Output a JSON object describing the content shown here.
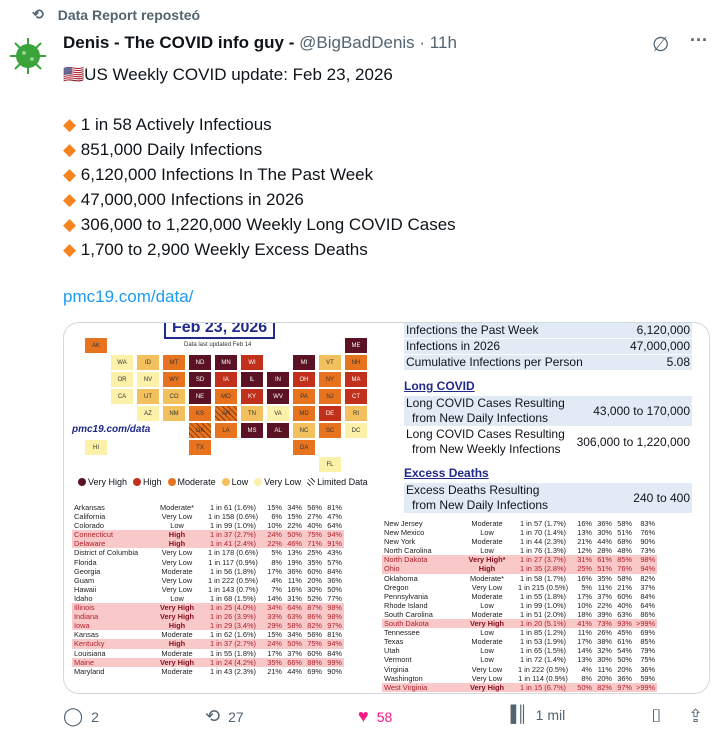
{
  "repost_banner": {
    "label": "Data Report reposteó"
  },
  "tweet": {
    "author": "Denis - The COVID info guy -",
    "handle": "@BigBadDenis",
    "time": "11h",
    "title": "🇺🇸US Weekly COVID update: Feb 23, 2026",
    "bullets": [
      "1 in 58 Actively Infectious",
      "851,000 Daily Infections",
      "6,120,000 Infections In The Past Week",
      "47,000,000 Infections in 2026",
      "306,000 to 1,220,000 Weekly Long COVID Cases",
      "1,700 to 2,900 Weekly Excess Deaths"
    ],
    "link": "pmc19.com/data/"
  },
  "image": {
    "map": {
      "title": "Feb 23, 2026",
      "updated": "Data last updated Feb 14",
      "watermark": "pmc19.com/data",
      "legend": [
        "Very High",
        "High",
        "Moderate",
        "Low",
        "Very Low",
        "Limited Data"
      ],
      "colors": {
        "Very High": "#5a1224",
        "High": "#c0301a",
        "Moderate": "#e8731e",
        "Low": "#f2c05c",
        "Very Low": "#fbf1a8",
        "Limited Data": "#e8731e"
      },
      "states": {
        "AK": "Moderate",
        "ME": "Very High",
        "WA": "Very Low",
        "ID": "Low",
        "MT": "Moderate",
        "ND": "Very High",
        "MN": "Very High",
        "WI": "High",
        "MI": "Very High",
        "VT": "Low",
        "NH": "Moderate",
        "OR": "Very Low",
        "NV": "Very Low",
        "WY": "Moderate",
        "SD": "Very High",
        "IA": "High",
        "IL": "Very High",
        "IN": "Very High",
        "OH": "High",
        "NY": "Moderate",
        "MA": "High",
        "CA": "Very Low",
        "UT": "Low",
        "CO": "Low",
        "NE": "Very High",
        "MO": "Moderate",
        "KY": "High",
        "WV": "Very High",
        "PA": "Moderate",
        "NJ": "Moderate",
        "CT": "High",
        "AZ": "Very Low",
        "NM": "Low",
        "KS": "Moderate",
        "AR": "Limited Data",
        "TN": "Low",
        "VA": "Very Low",
        "MD": "Moderate",
        "DE": "High",
        "RI": "Low",
        "OK": "Limited Data",
        "LA": "Moderate",
        "MS": "Very High",
        "AL": "Very High",
        "NC": "Low",
        "SC": "Moderate",
        "DC": "Very Low",
        "HI": "Very Low",
        "TX": "Moderate",
        "GA": "Moderate",
        "FL": "Very Low"
      }
    },
    "summary": {
      "rows": [
        [
          "Infections the Past Week",
          "6,120,000"
        ],
        [
          "Infections in 2026",
          "47,000,000"
        ],
        [
          "Cumulative Infections per Person",
          "5.08"
        ]
      ],
      "long_covid": {
        "heading": "Long COVID",
        "rows": [
          [
            "Long COVID Cases Resulting",
            "from New Daily Infections",
            "43,000 to 170,000"
          ],
          [
            "Long COVID Cases Resulting",
            "from New Weekly Infections",
            "306,000 to 1,220,000"
          ]
        ]
      },
      "excess": {
        "heading": "Excess Deaths",
        "rows": [
          [
            "Excess Deaths Resulting",
            "from New Daily Infections",
            "240 to 400"
          ]
        ]
      }
    },
    "table_left": [
      [
        "Arkansas",
        "Moderate*",
        "1 in 61 (1.6%)",
        "15%",
        "34%",
        "56%",
        "81%",
        false
      ],
      [
        "California",
        "Very Low",
        "1 in 158 (0.6%)",
        "6%",
        "15%",
        "27%",
        "47%",
        false
      ],
      [
        "Colorado",
        "Low",
        "1 in 99 (1.0%)",
        "10%",
        "22%",
        "40%",
        "64%",
        false
      ],
      [
        "Connecticut",
        "High",
        "1 in 37 (2.7%)",
        "24%",
        "50%",
        "75%",
        "94%",
        true
      ],
      [
        "Delaware",
        "High",
        "1 in 41 (2.4%)",
        "22%",
        "46%",
        "71%",
        "91%",
        true
      ],
      [
        "District of Columbia",
        "Very Low",
        "1 in 178 (0.6%)",
        "5%",
        "13%",
        "25%",
        "43%",
        false
      ],
      [
        "Florida",
        "Very Low",
        "1 in 117 (0.9%)",
        "8%",
        "19%",
        "35%",
        "57%",
        false
      ],
      [
        "Georgia",
        "Moderate",
        "1 in 56 (1.8%)",
        "17%",
        "36%",
        "60%",
        "84%",
        false
      ],
      [
        "Guam",
        "Very Low",
        "1 in 222 (0.5%)",
        "4%",
        "11%",
        "20%",
        "36%",
        false
      ],
      [
        "Hawaii",
        "Very Low",
        "1 in 143 (0.7%)",
        "7%",
        "16%",
        "30%",
        "50%",
        false
      ],
      [
        "Idaho",
        "Low",
        "1 in 68 (1.5%)",
        "14%",
        "31%",
        "52%",
        "77%",
        false
      ],
      [
        "Illinois",
        "Very High",
        "1 in 25 (4.0%)",
        "34%",
        "64%",
        "87%",
        "98%",
        true
      ],
      [
        "Indiana",
        "Very High",
        "1 in 26 (3.9%)",
        "33%",
        "63%",
        "86%",
        "98%",
        true
      ],
      [
        "Iowa",
        "High",
        "1 in 29 (3.4%)",
        "29%",
        "58%",
        "82%",
        "97%",
        true
      ],
      [
        "Kansas",
        "Moderate",
        "1 in 62 (1.6%)",
        "15%",
        "34%",
        "56%",
        "81%",
        false
      ],
      [
        "Kentucky",
        "High",
        "1 in 37 (2.7%)",
        "24%",
        "50%",
        "75%",
        "94%",
        true
      ],
      [
        "Louisiana",
        "Moderate",
        "1 in 55 (1.8%)",
        "17%",
        "37%",
        "60%",
        "84%",
        false
      ],
      [
        "Maine",
        "Very High",
        "1 in 24 (4.2%)",
        "35%",
        "66%",
        "88%",
        "99%",
        true
      ],
      [
        "Maryland",
        "Moderate",
        "1 in 43 (2.3%)",
        "21%",
        "44%",
        "69%",
        "90%",
        false
      ]
    ],
    "table_right": [
      [
        "New Jersey",
        "Moderate",
        "1 in 57 (1.7%)",
        "16%",
        "36%",
        "58%",
        "83%",
        false
      ],
      [
        "New Mexico",
        "Low",
        "1 in 70 (1.4%)",
        "13%",
        "30%",
        "51%",
        "76%",
        false
      ],
      [
        "New York",
        "Moderate",
        "1 in 44 (2.3%)",
        "21%",
        "44%",
        "68%",
        "90%",
        false
      ],
      [
        "North Carolina",
        "Low",
        "1 in 76 (1.3%)",
        "12%",
        "28%",
        "48%",
        "73%",
        false
      ],
      [
        "North Dakota",
        "Very High*",
        "1 in 27 (3.7%)",
        "31%",
        "61%",
        "85%",
        "98%",
        true
      ],
      [
        "Ohio",
        "High",
        "1 in 35 (2.8%)",
        "25%",
        "51%",
        "76%",
        "94%",
        true
      ],
      [
        "Oklahoma",
        "Moderate*",
        "1 in 58 (1.7%)",
        "16%",
        "35%",
        "58%",
        "82%",
        false
      ],
      [
        "Oregon",
        "Very Low",
        "1 in 215 (0.5%)",
        "5%",
        "11%",
        "21%",
        "37%",
        false
      ],
      [
        "Pennsylvania",
        "Moderate",
        "1 in 55 (1.8%)",
        "17%",
        "37%",
        "60%",
        "84%",
        false
      ],
      [
        "Rhode Island",
        "Low",
        "1 in 99 (1.0%)",
        "10%",
        "22%",
        "40%",
        "64%",
        false
      ],
      [
        "South Carolina",
        "Moderate",
        "1 in 51 (2.0%)",
        "18%",
        "39%",
        "63%",
        "86%",
        false
      ],
      [
        "South Dakota",
        "Very High",
        "1 in 20 (5.1%)",
        "41%",
        "73%",
        "93%",
        ">99%",
        true
      ],
      [
        "Tennessee",
        "Low",
        "1 in 85 (1.2%)",
        "11%",
        "26%",
        "45%",
        "69%",
        false
      ],
      [
        "Texas",
        "Moderate",
        "1 in 53 (1.9%)",
        "17%",
        "38%",
        "61%",
        "85%",
        false
      ],
      [
        "Utah",
        "Low",
        "1 in 65 (1.5%)",
        "14%",
        "32%",
        "54%",
        "79%",
        false
      ],
      [
        "Vermont",
        "Low",
        "1 in 72 (1.4%)",
        "13%",
        "30%",
        "50%",
        "75%",
        false
      ],
      [
        "Virginia",
        "Very Low",
        "1 in 222 (0.5%)",
        "4%",
        "11%",
        "20%",
        "36%",
        false
      ],
      [
        "Washington",
        "Very Low",
        "1 in 114 (0.9%)",
        "8%",
        "20%",
        "36%",
        "59%",
        false
      ],
      [
        "West Virginia",
        "Very High",
        "1 in 15 (6.7%)",
        "50%",
        "82%",
        "97%",
        ">99%",
        true
      ]
    ]
  },
  "actions": {
    "replies": "2",
    "reposts": "27",
    "likes": "58",
    "views": "1 mil",
    "like_color": "#f91880"
  }
}
